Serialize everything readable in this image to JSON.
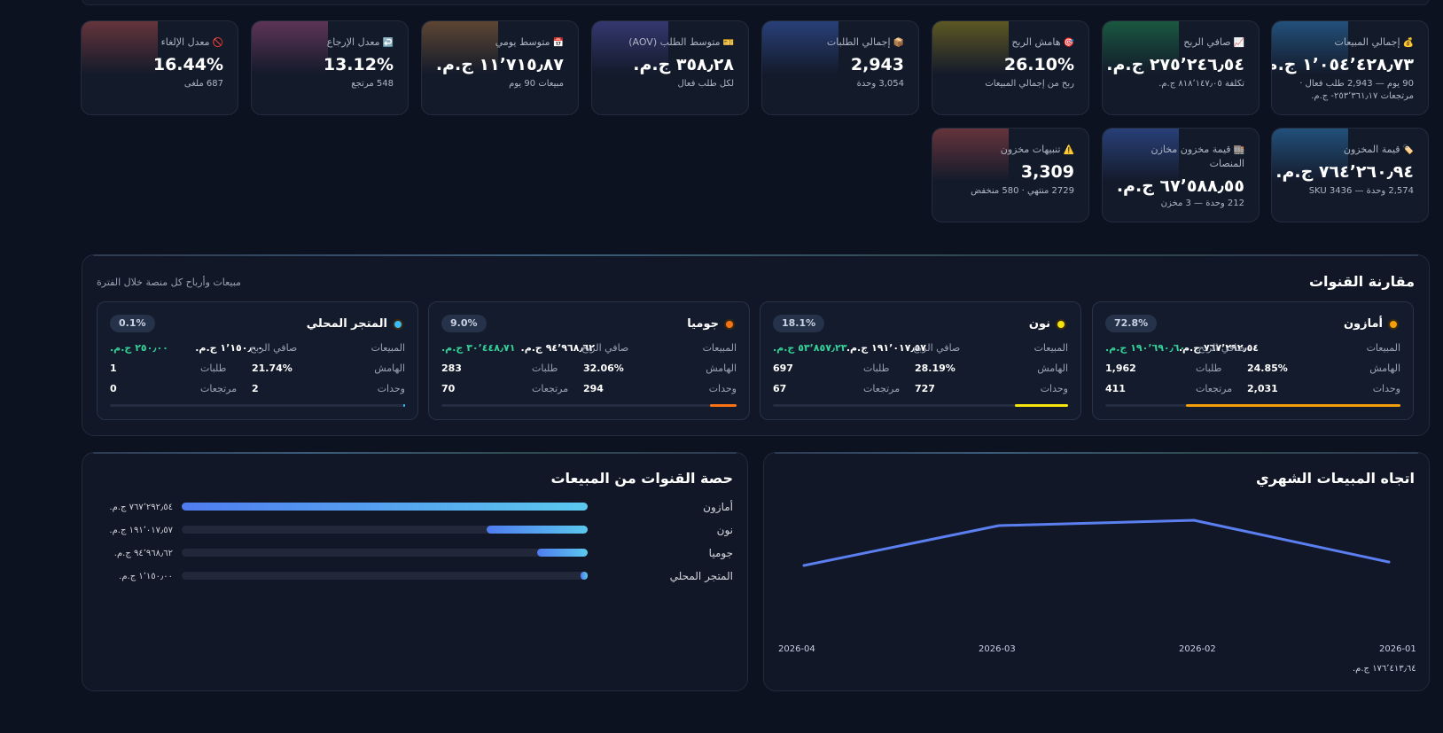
{
  "kpis": [
    {
      "icon": "💰",
      "title": "إجمالي المبيعات",
      "value": "١٬٠٥٤٬٤٢٨٫٧٣ ج.م.",
      "sub": "90 يوم — 2,943 طلب فعال · مرتجعات ٢٥٣٬٣٦١٫١٧- ج.م.",
      "color": "#2f7dbd"
    },
    {
      "icon": "📈",
      "title": "صافي الربح",
      "value": "٢٧٥٬٢٤٦٫٥٤ ج.م.",
      "sub": "تكلفة ٨١٨٬١٤٧٫٠٥ ج.م.",
      "color": "#1f8a52"
    },
    {
      "icon": "🎯",
      "title": "هامش الربح",
      "value": "26.10%",
      "sub": "ربح من إجمالي المبيعات",
      "color": "#9a8a1f"
    },
    {
      "icon": "📦",
      "title": "إجمالي الطلبات",
      "value": "2,943",
      "sub": "3,054 وحدة",
      "color": "#3a5fb8"
    },
    {
      "icon": "🎫",
      "title": "متوسط الطلب (AOV)",
      "value": "٣٥٨٫٢٨ ج.م.",
      "sub": "لكل طلب فعال",
      "color": "#4f4fa8"
    },
    {
      "icon": "📅",
      "title": "متوسط يومي",
      "value": "١١٬٧١٥٫٨٧ ج.م.",
      "sub": "مبيعات 90 يوم",
      "color": "#9a6a3a"
    },
    {
      "icon": "↩️",
      "title": "معدل الإرجاع",
      "value": "13.12%",
      "sub": "548 مرتجع",
      "color": "#9a4a7a"
    },
    {
      "icon": "🚫",
      "title": "معدل الإلغاء",
      "value": "16.44%",
      "sub": "687 ملغى",
      "color": "#a84a4a"
    },
    {
      "icon": "🏷️",
      "title": "قيمة المخزون",
      "value": "٧٦٤٬٢٦٠٫٩٤ ج.م.",
      "sub": "2,574 وحدة — 3436 SKU",
      "color": "#2f7dbd"
    },
    {
      "icon": "🏬",
      "title": "قيمة مخزون مخازن المنصات",
      "value": "٦٧٬٥٨٨٫٥٥ ج.م.",
      "sub": "212 وحدة — 3 مخزن",
      "color": "#3a5fb8"
    },
    {
      "icon": "⚠️",
      "title": "تنبيهات مخزون",
      "value": "3,309",
      "sub": "2729 منتهي · 580 منخفض",
      "color": "#a84a4a"
    }
  ],
  "comparison": {
    "title": "مقارنة القنوات",
    "subtitle": "مبيعات وأرباح كل منصة خلال الفترة",
    "labels": {
      "sales": "المبيعات",
      "profit": "صافي الربح",
      "margin": "الهامش",
      "orders": "طلبات",
      "units": "وحدات",
      "returns": "مرتجعات"
    },
    "channels": [
      {
        "name": "أمازون",
        "share": "72.8%",
        "share_value": 0.728,
        "sales": "٧٦٧٬٢٩٢٫٥٤ ج.م.",
        "profit": "١٩٠٬٦٩٠٫٦٠ ج.م.",
        "margin": "24.85%",
        "orders": "1,962",
        "units": "2,031",
        "returns": "411",
        "color": "#f59e0b"
      },
      {
        "name": "نون",
        "share": "18.1%",
        "share_value": 0.181,
        "sales": "١٩١٬٠١٧٫٥٧ ج.م.",
        "profit": "٥٣٬٨٥٧٫٢٣ ج.م.",
        "margin": "28.19%",
        "orders": "697",
        "units": "727",
        "returns": "67",
        "color": "#f5e50b"
      },
      {
        "name": "جوميا",
        "share": "9.0%",
        "share_value": 0.09,
        "sales": "٩٤٬٩٦٨٫٦٢ ج.م.",
        "profit": "٣٠٬٤٤٨٫٧١ ج.م.",
        "margin": "32.06%",
        "orders": "283",
        "units": "294",
        "returns": "70",
        "color": "#f97316"
      },
      {
        "name": "المتجر المحلي",
        "share": "0.1%",
        "share_value": 0.001,
        "sales": "١٬١٥٠٫٠٠ ج.م.",
        "profit": "٢٥٠٫٠٠ ج.م.",
        "margin": "21.74%",
        "orders": "1",
        "units": "2",
        "returns": "0",
        "color": "#38bdf8"
      }
    ]
  },
  "share_chart": {
    "title": "حصة القنوات من المبيعات",
    "rows": [
      {
        "label": "أمازون",
        "value": "٧٦٧٬٢٩٢٫٥٤ ج.م.",
        "fraction": 1.0
      },
      {
        "label": "نون",
        "value": "١٩١٬٠١٧٫٥٧ ج.م.",
        "fraction": 0.249
      },
      {
        "label": "جوميا",
        "value": "٩٤٬٩٦٨٫٦٢ ج.م.",
        "fraction": 0.124
      },
      {
        "label": "المتجر المحلي",
        "value": "١٬١٥٠٫٠٠ ج.م.",
        "fraction": 0.0015
      }
    ]
  },
  "chart_data": {
    "type": "line",
    "title": "اتجاه المبيعات الشهري",
    "x": [
      "2026-04",
      "2026-03",
      "2026-02",
      "2026-01"
    ],
    "values": [
      240000,
      390000,
      410000,
      253000
    ],
    "value_label": "١٧٦٬٤١٣٫٦٤ ج.م.",
    "ylim": [
      0,
      500000
    ],
    "grid": false,
    "series_color": "#5b7ff0"
  }
}
